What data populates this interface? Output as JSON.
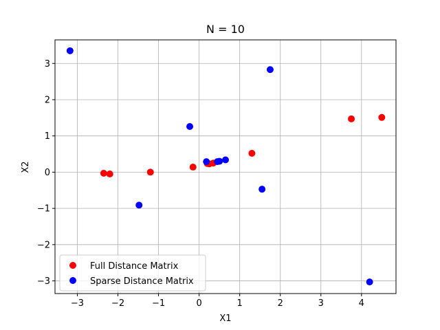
{
  "chart_data": {
    "type": "scatter",
    "title": "N = 10",
    "xlabel": "X1",
    "ylabel": "X2",
    "xlim": [
      -3.55,
      4.85
    ],
    "ylim": [
      -3.35,
      3.65
    ],
    "xticks": [
      -3,
      -2,
      -1,
      0,
      1,
      2,
      3,
      4
    ],
    "yticks": [
      -3,
      -2,
      -1,
      0,
      1,
      2,
      3
    ],
    "grid": true,
    "legend_position": "lower-left",
    "series": [
      {
        "name": "Full Distance Matrix",
        "color": "#ff0000",
        "points": [
          [
            -2.35,
            -0.03
          ],
          [
            -2.2,
            -0.05
          ],
          [
            -1.2,
            0.0
          ],
          [
            -0.15,
            0.14
          ],
          [
            0.2,
            0.24
          ],
          [
            0.25,
            0.23
          ],
          [
            0.35,
            0.25
          ],
          [
            1.3,
            0.52
          ],
          [
            3.75,
            1.47
          ],
          [
            4.5,
            1.51
          ]
        ]
      },
      {
        "name": "Sparse Distance Matrix",
        "color": "#0000ff",
        "points": [
          [
            -3.18,
            3.35
          ],
          [
            -1.48,
            -0.91
          ],
          [
            -0.23,
            1.26
          ],
          [
            0.18,
            0.29
          ],
          [
            0.45,
            0.29
          ],
          [
            0.5,
            0.3
          ],
          [
            0.65,
            0.34
          ],
          [
            1.55,
            -0.47
          ],
          [
            1.75,
            2.83
          ],
          [
            4.2,
            -3.03
          ]
        ]
      }
    ]
  }
}
